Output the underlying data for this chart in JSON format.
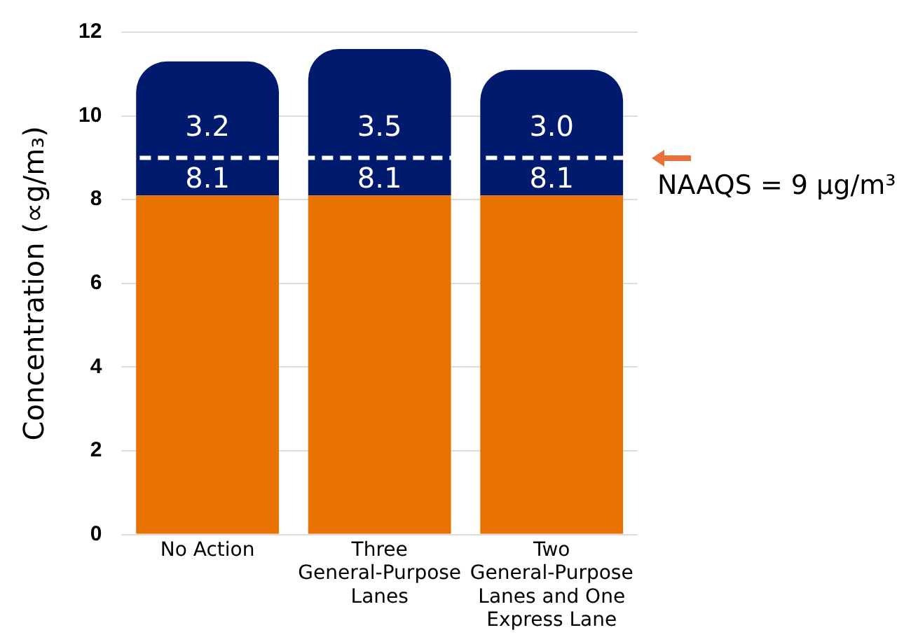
{
  "chart_data": {
    "type": "bar",
    "ylabel": "Concentration (∝g/m₃)",
    "stacked": true,
    "categories": [
      "No Action",
      "Three General-Purpose Lanes",
      "Two General-Purpose Lanes and One Express Lane"
    ],
    "series": [
      {
        "color": "#e87200",
        "values": [
          8.1,
          8.1,
          8.1
        ],
        "value_labels": [
          "8.1",
          "8.1",
          "8.1"
        ]
      },
      {
        "color": "#001a6e",
        "values": [
          3.2,
          3.5,
          3.0
        ],
        "value_labels": [
          "3.2",
          "3.5",
          "3.0"
        ]
      }
    ],
    "ylim": [
      0,
      12
    ],
    "yticks": [
      0,
      2,
      4,
      6,
      8,
      10,
      12
    ],
    "grid": "y",
    "legend": false,
    "ref_lines": [
      {
        "axis": "y",
        "value": 9,
        "label": "NAAQS = 9 µg/m³",
        "color": "#ffffff",
        "line_style": "dashed"
      }
    ]
  }
}
